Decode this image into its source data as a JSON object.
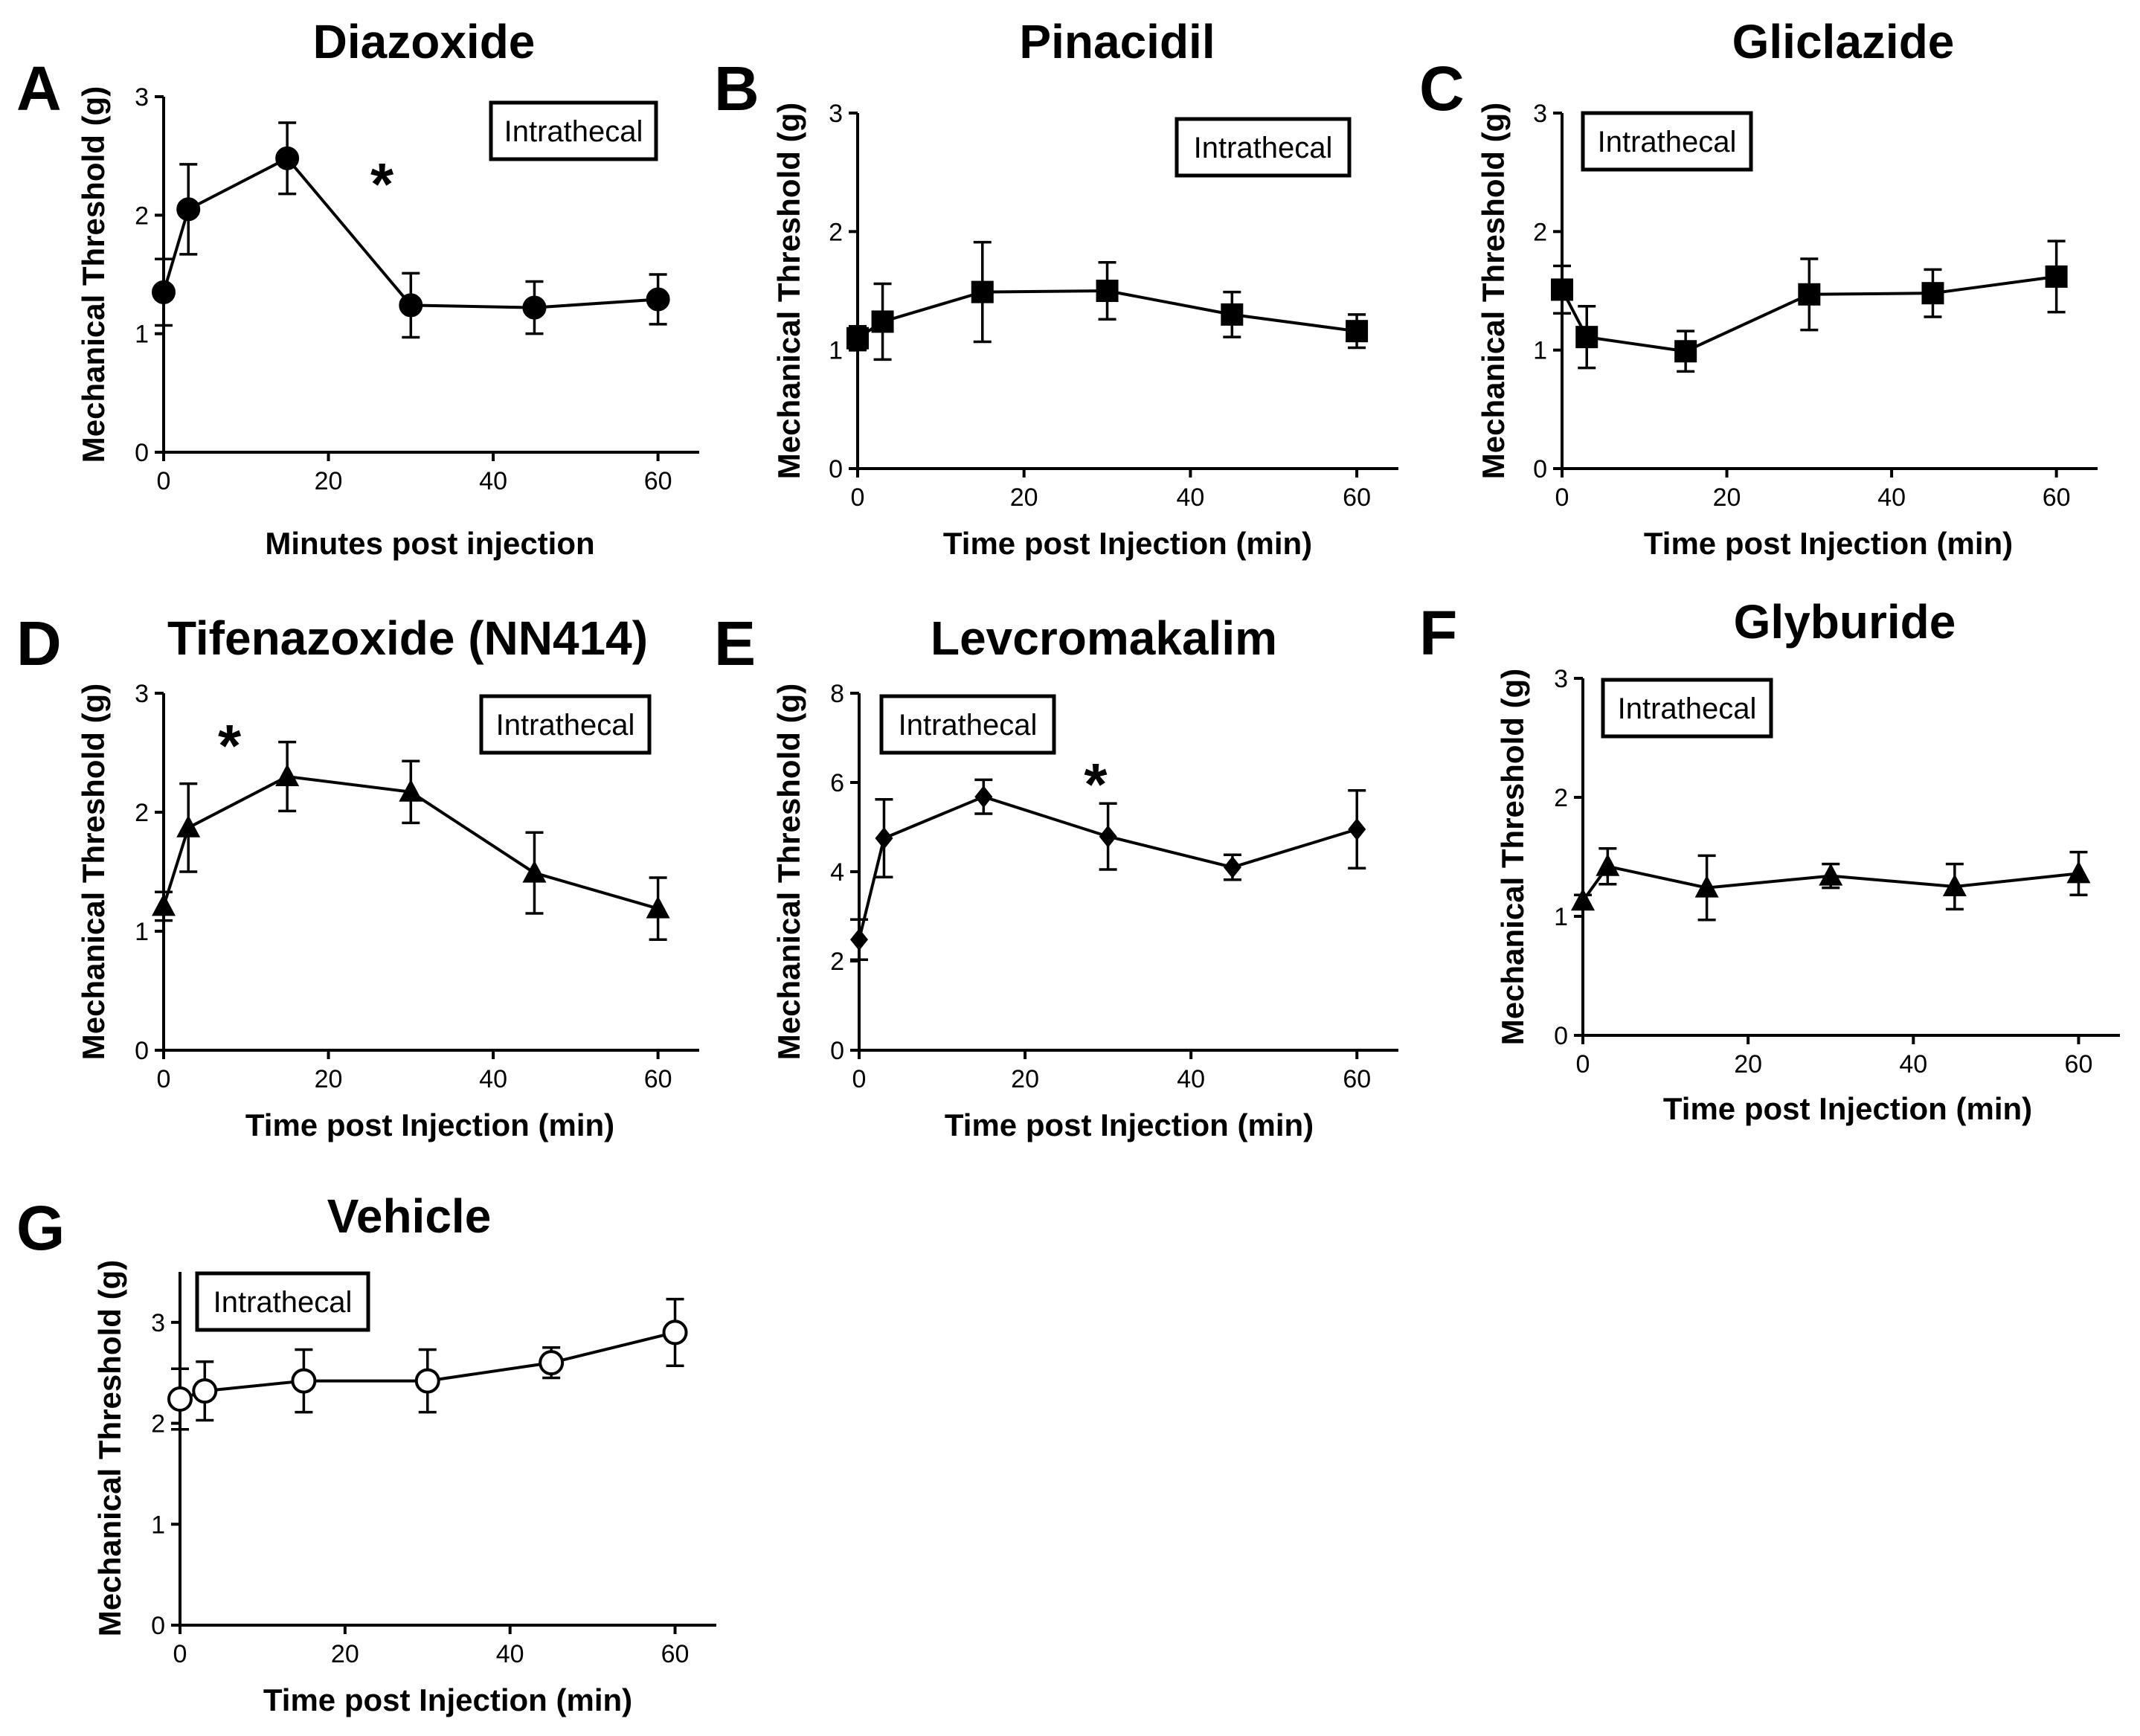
{
  "chart_data": [
    {
      "id": "A",
      "type": "line",
      "letter": "A",
      "title": "Diazoxide",
      "xlabel": "Minutes post injection",
      "ylabel": "Mechanical Threshold (g)",
      "xlim": [
        0,
        65
      ],
      "ylim": [
        0,
        3
      ],
      "xticks": [
        "0",
        "20",
        "40",
        "60"
      ],
      "yticks": [
        "0",
        "1",
        "2",
        "3"
      ],
      "legend": "Intrathecal",
      "legend_position": "top-right",
      "marker": "circle",
      "marker_fill": "#000000",
      "significance": [
        {
          "label": "*",
          "x": 26.5
        }
      ],
      "series": [
        {
          "name": "Diazoxide",
          "x": [
            0,
            3,
            15,
            30,
            45,
            60
          ],
          "values": [
            1.35,
            2.05,
            2.48,
            1.24,
            1.22,
            1.29
          ],
          "error": [
            0.28,
            0.38,
            0.3,
            0.27,
            0.22,
            0.21
          ]
        }
      ]
    },
    {
      "id": "B",
      "type": "line",
      "letter": "B",
      "title": "Pinacidil",
      "xlabel": "Time post Injection (min)",
      "ylabel": "Mechanical Threshold (g)",
      "xlim": [
        0,
        65
      ],
      "ylim": [
        0,
        3
      ],
      "xticks": [
        "0",
        "20",
        "40",
        "60"
      ],
      "yticks": [
        "0",
        "1",
        "2",
        "3"
      ],
      "legend": "Intrathecal",
      "legend_position": "top-right",
      "marker": "square",
      "marker_fill": "#000000",
      "significance": [],
      "series": [
        {
          "name": "Pinacidil",
          "x": [
            0,
            3,
            15,
            30,
            45,
            60
          ],
          "values": [
            1.1,
            1.24,
            1.49,
            1.5,
            1.3,
            1.16
          ],
          "error": [
            0.1,
            0.32,
            0.42,
            0.24,
            0.19,
            0.14
          ]
        }
      ]
    },
    {
      "id": "C",
      "type": "line",
      "letter": "C",
      "title": "Gliclazide",
      "xlabel": "Time post Injection (min)",
      "ylabel": "Mechanical Threshold (g)",
      "xlim": [
        0,
        65
      ],
      "ylim": [
        0,
        3
      ],
      "xticks": [
        "0",
        "20",
        "40",
        "60"
      ],
      "yticks": [
        "0",
        "1",
        "2",
        "3"
      ],
      "legend": "Intrathecal",
      "legend_position": "top-left",
      "marker": "square",
      "marker_fill": "#000000",
      "significance": [],
      "series": [
        {
          "name": "Gliclazide",
          "x": [
            0,
            3,
            15,
            30,
            45,
            60
          ],
          "values": [
            1.51,
            1.11,
            0.99,
            1.47,
            1.48,
            1.62
          ],
          "error": [
            0.2,
            0.26,
            0.17,
            0.3,
            0.2,
            0.3
          ]
        }
      ]
    },
    {
      "id": "D",
      "type": "line",
      "letter": "D",
      "title": "Tifenazoxide (NN414)",
      "xlabel": "Time post Injection (min)",
      "ylabel": "Mechanical Threshold (g)",
      "xlim": [
        0,
        65
      ],
      "ylim": [
        0,
        3
      ],
      "xticks": [
        "0",
        "20",
        "40",
        "60"
      ],
      "yticks": [
        "0",
        "1",
        "2",
        "3"
      ],
      "legend": "Intrathecal",
      "legend_position": "top-right",
      "marker": "triangle",
      "marker_fill": "#000000",
      "significance": [
        {
          "label": "*",
          "x": 8
        }
      ],
      "series": [
        {
          "name": "Tifenazoxide (NN414)",
          "x": [
            0,
            3,
            15,
            30,
            45,
            60
          ],
          "values": [
            1.21,
            1.87,
            2.3,
            2.17,
            1.49,
            1.19
          ],
          "error": [
            0.12,
            0.37,
            0.29,
            0.26,
            0.34,
            0.26
          ]
        }
      ]
    },
    {
      "id": "E",
      "type": "line",
      "letter": "E",
      "title": "Levcromakalim",
      "xlabel": "Time post Injection (min)",
      "ylabel": "Mechanical Threshold (g)",
      "xlim": [
        0,
        65
      ],
      "ylim": [
        0,
        8
      ],
      "xticks": [
        "0",
        "20",
        "40",
        "60"
      ],
      "yticks": [
        "0",
        "2",
        "4",
        "6",
        "8"
      ],
      "legend": "Intrathecal",
      "legend_position": "top-left",
      "marker": "diamond",
      "marker_fill": "#000000",
      "significance": [
        {
          "label": "*",
          "x": 28.5
        }
      ],
      "series": [
        {
          "name": "Levcromakalim",
          "x": [
            0,
            3,
            15,
            30,
            45,
            60
          ],
          "values": [
            2.48,
            4.75,
            5.68,
            4.79,
            4.1,
            4.95
          ],
          "error": [
            0.45,
            0.87,
            0.38,
            0.74,
            0.28,
            0.87
          ]
        }
      ]
    },
    {
      "id": "F",
      "type": "line",
      "letter": "F",
      "title": "Glyburide",
      "xlabel": "Time post Injection (min)",
      "ylabel": "Mechanical Threshold (g)",
      "xlim": [
        0,
        65
      ],
      "ylim": [
        0,
        3
      ],
      "xticks": [
        "0",
        "20",
        "40",
        "60"
      ],
      "yticks": [
        "0",
        "1",
        "2",
        "3"
      ],
      "legend": "Intrathecal",
      "legend_position": "top-left",
      "marker": "triangle",
      "marker_fill": "#000000",
      "significance": [],
      "series": [
        {
          "name": "Glyburide",
          "x": [
            0,
            3,
            15,
            30,
            45,
            60
          ],
          "values": [
            1.13,
            1.42,
            1.24,
            1.34,
            1.25,
            1.36
          ],
          "error": [
            0.05,
            0.15,
            0.27,
            0.1,
            0.19,
            0.18
          ]
        }
      ]
    },
    {
      "id": "G",
      "type": "line",
      "letter": "G",
      "title": "Vehicle",
      "xlabel": "Time post Injection (min)",
      "ylabel": "Mechanical Threshold (g)",
      "xlim": [
        0,
        65
      ],
      "ylim": [
        0,
        3.5
      ],
      "xticks": [
        "0",
        "20",
        "40",
        "60"
      ],
      "yticks": [
        "0",
        "1",
        "2",
        "3"
      ],
      "legend": "Intrathecal",
      "legend_position": "top-left",
      "marker": "circle-open",
      "marker_fill": "#ffffff",
      "significance": [],
      "series": [
        {
          "name": "Vehicle",
          "x": [
            0,
            3,
            15,
            30,
            45,
            60
          ],
          "values": [
            2.24,
            2.32,
            2.42,
            2.42,
            2.6,
            2.9
          ],
          "error": [
            0.3,
            0.29,
            0.31,
            0.31,
            0.15,
            0.33
          ]
        }
      ]
    }
  ]
}
